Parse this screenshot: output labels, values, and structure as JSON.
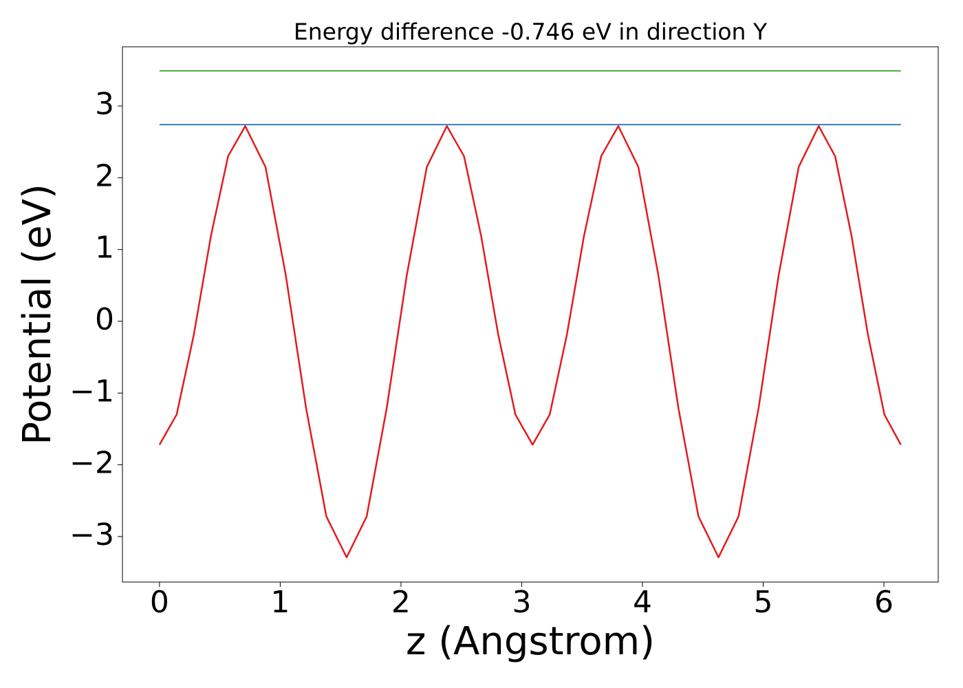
{
  "chart_data": {
    "type": "line",
    "title": "Energy difference -0.746 eV in direction Y",
    "x_label": "z (Angstrom)",
    "y_label": "Potential (eV)",
    "series": [
      {
        "color": "#e41a1c",
        "x": [
          0,
          0.142,
          0.284,
          0.426,
          0.568,
          0.71,
          0.878,
          1.046,
          1.214,
          1.382,
          1.55,
          1.716,
          1.882,
          2.048,
          2.214,
          2.38,
          2.522,
          2.664,
          2.806,
          2.948,
          3.09,
          3.232,
          3.374,
          3.516,
          3.658,
          3.8,
          3.966,
          4.132,
          4.298,
          4.464,
          4.63,
          4.796,
          4.962,
          5.128,
          5.294,
          5.46,
          5.596,
          5.732,
          5.868,
          6.004,
          6.14
        ],
        "values": [
          -1.72,
          -1.3,
          -0.19,
          1.19,
          2.3,
          2.72,
          2.15,
          0.64,
          -1.21,
          -2.72,
          -3.29,
          -2.72,
          -1.21,
          0.64,
          2.15,
          2.72,
          2.3,
          1.19,
          -0.19,
          -1.3,
          -1.72,
          -1.3,
          -0.19,
          1.19,
          2.3,
          2.72,
          2.15,
          0.64,
          -1.21,
          -2.72,
          -3.29,
          -2.72,
          -1.21,
          0.64,
          2.15,
          2.72,
          2.3,
          1.19,
          -0.19,
          -1.3,
          -1.72
        ]
      },
      {
        "color": "#377eb8",
        "x": [
          0,
          6.14
        ],
        "values": [
          2.74,
          2.74
        ]
      },
      {
        "color": "#4daf4a",
        "x": [
          0,
          6.14
        ],
        "values": [
          3.49,
          3.49
        ]
      }
    ],
    "xlim": [
      -0.307,
      6.45
    ],
    "ylim": [
      -3.634,
      3.825
    ],
    "xticks": [
      0,
      1,
      2,
      3,
      4,
      5,
      6
    ],
    "yticks": [
      {
        "value": -3,
        "label": "−3"
      },
      {
        "value": -2,
        "label": "−2"
      },
      {
        "value": -1,
        "label": "−1"
      },
      0,
      1,
      2,
      3
    ]
  }
}
